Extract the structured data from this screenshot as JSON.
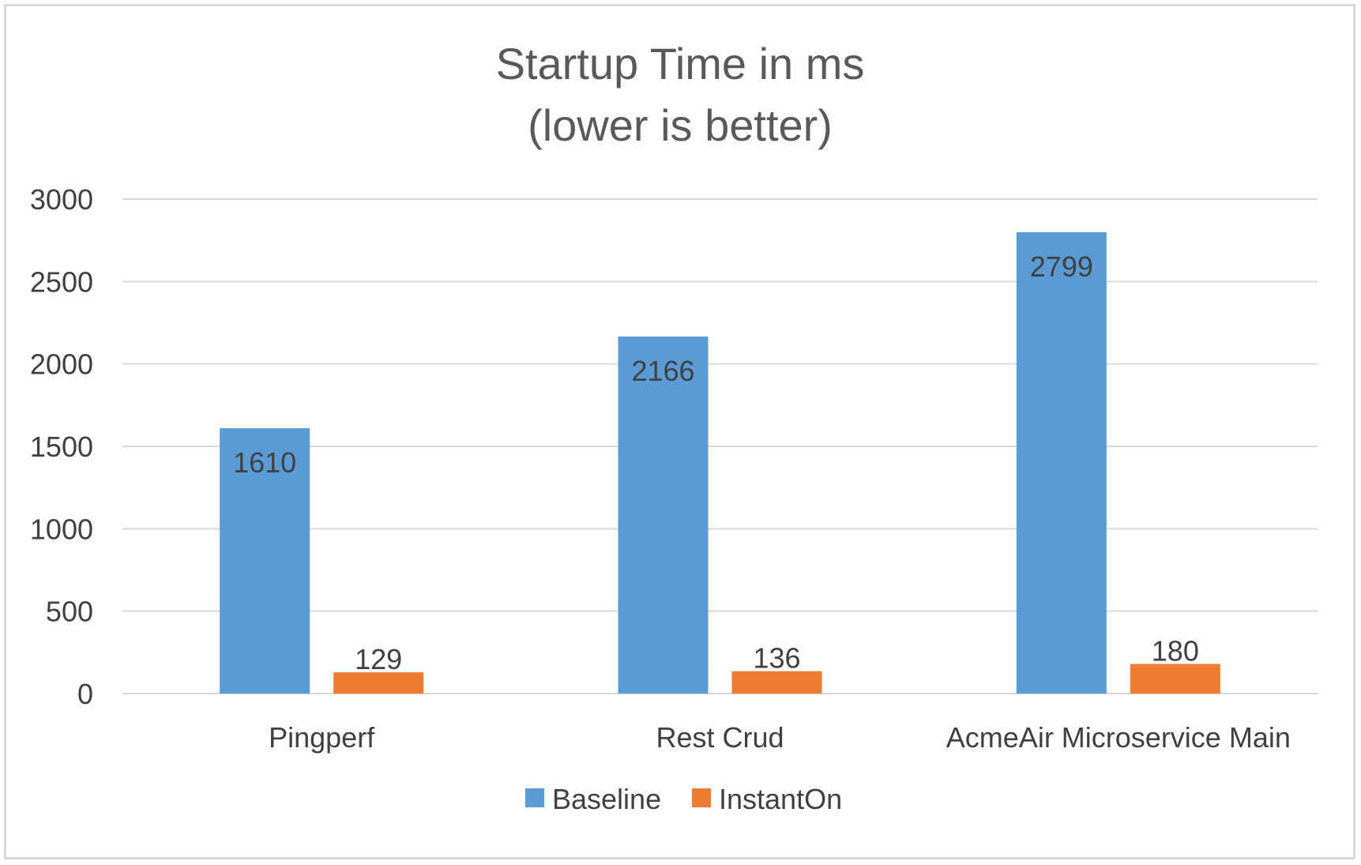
{
  "chart_data": {
    "type": "bar",
    "title_lines": [
      "Startup Time in ms",
      "(lower is better)"
    ],
    "xlabel": "",
    "ylabel": "",
    "categories": [
      "Pingperf",
      "Rest Crud",
      "AcmeAir Microservice Main"
    ],
    "series": [
      {
        "name": "Baseline",
        "values": [
          1610,
          2166,
          2799
        ],
        "color": "#5b9bd5"
      },
      {
        "name": "InstantOn",
        "values": [
          129,
          136,
          180
        ],
        "color": "#ed7d31"
      }
    ],
    "ylim": [
      0,
      3000
    ],
    "yticks": [
      0,
      500,
      1000,
      1500,
      2000,
      2500,
      3000
    ],
    "grid": true,
    "legend": "bottom-center",
    "colors": {
      "gridline": "#d9d9d9",
      "text": "#404040",
      "title": "#595959"
    }
  }
}
